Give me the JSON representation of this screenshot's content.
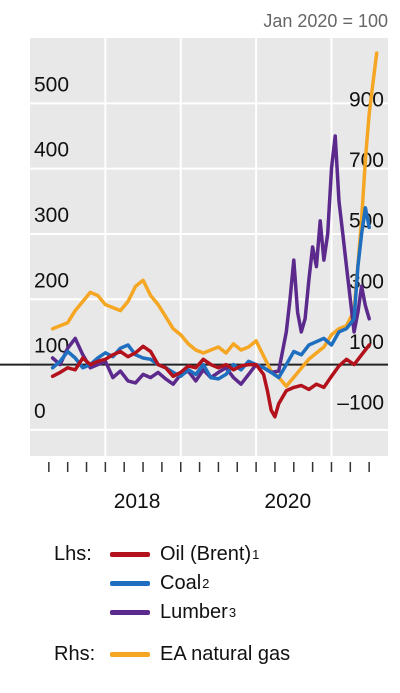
{
  "chart_data": {
    "type": "line",
    "note": "Jan 2020 = 100",
    "x_tick_labels": [
      "2018",
      "2020"
    ],
    "x_range": [
      2017.0,
      2021.75
    ],
    "left_axis": {
      "range": [
        -40,
        600
      ],
      "ticks": [
        0,
        100,
        200,
        300,
        400,
        500
      ]
    },
    "right_axis": {
      "range": [
        -280,
        1100
      ],
      "ticks": [
        -100,
        100,
        300,
        500,
        700,
        900
      ]
    },
    "reference_line": 100,
    "grid": true,
    "legend_placement": "bottom",
    "series": [
      {
        "name": "Oil (Brent)",
        "footnote": "1",
        "axis": "left",
        "axis_label": "Lhs:",
        "color": "#b3121c",
        "x": [
          2017.3,
          2017.4,
          2017.5,
          2017.6,
          2017.7,
          2017.8,
          2017.9,
          2018.0,
          2018.1,
          2018.2,
          2018.3,
          2018.4,
          2018.5,
          2018.6,
          2018.7,
          2018.8,
          2018.9,
          2019.0,
          2019.1,
          2019.2,
          2019.3,
          2019.4,
          2019.5,
          2019.6,
          2019.7,
          2019.8,
          2019.9,
          2020.0,
          2020.1,
          2020.15,
          2020.2,
          2020.25,
          2020.3,
          2020.35,
          2020.4,
          2020.5,
          2020.6,
          2020.7,
          2020.8,
          2020.9,
          2021.0,
          2021.1,
          2021.2,
          2021.3,
          2021.4,
          2021.5
        ],
        "values": [
          82,
          88,
          95,
          92,
          110,
          100,
          105,
          108,
          115,
          120,
          112,
          118,
          128,
          120,
          100,
          95,
          82,
          88,
          98,
          95,
          108,
          100,
          95,
          100,
          92,
          98,
          100,
          100,
          85,
          60,
          30,
          20,
          40,
          50,
          60,
          65,
          68,
          62,
          70,
          65,
          82,
          98,
          108,
          100,
          115,
          130
        ]
      },
      {
        "name": "Coal",
        "footnote": "2",
        "axis": "left",
        "axis_label": "",
        "color": "#1f6fc0",
        "x": [
          2017.3,
          2017.4,
          2017.5,
          2017.6,
          2017.7,
          2017.8,
          2017.9,
          2018.0,
          2018.1,
          2018.2,
          2018.3,
          2018.4,
          2018.5,
          2018.6,
          2018.7,
          2018.8,
          2018.9,
          2019.0,
          2019.1,
          2019.2,
          2019.3,
          2019.4,
          2019.5,
          2019.6,
          2019.7,
          2019.8,
          2019.9,
          2020.0,
          2020.1,
          2020.2,
          2020.3,
          2020.4,
          2020.5,
          2020.6,
          2020.7,
          2020.8,
          2020.9,
          2021.0,
          2021.1,
          2021.2,
          2021.3,
          2021.35,
          2021.4,
          2021.45,
          2021.5
        ],
        "values": [
          95,
          105,
          120,
          110,
          95,
          100,
          110,
          118,
          112,
          125,
          130,
          115,
          110,
          108,
          100,
          95,
          88,
          82,
          92,
          85,
          100,
          80,
          78,
          85,
          100,
          92,
          105,
          100,
          95,
          88,
          80,
          100,
          120,
          115,
          130,
          135,
          140,
          130,
          150,
          155,
          170,
          250,
          300,
          340,
          310
        ]
      },
      {
        "name": "Lumber",
        "footnote": "3",
        "axis": "left",
        "axis_label": "",
        "color": "#5b2a8c",
        "x": [
          2017.3,
          2017.4,
          2017.5,
          2017.6,
          2017.7,
          2017.8,
          2017.9,
          2018.0,
          2018.1,
          2018.2,
          2018.3,
          2018.4,
          2018.5,
          2018.6,
          2018.7,
          2018.8,
          2018.9,
          2019.0,
          2019.1,
          2019.2,
          2019.3,
          2019.4,
          2019.5,
          2019.6,
          2019.7,
          2019.8,
          2019.9,
          2020.0,
          2020.1,
          2020.2,
          2020.3,
          2020.35,
          2020.4,
          2020.45,
          2020.5,
          2020.55,
          2020.6,
          2020.65,
          2020.7,
          2020.75,
          2020.8,
          2020.85,
          2020.9,
          2020.95,
          2021.0,
          2021.05,
          2021.1,
          2021.15,
          2021.2,
          2021.25,
          2021.3,
          2021.35,
          2021.4,
          2021.45,
          2021.5
        ],
        "values": [
          110,
          100,
          125,
          140,
          115,
          95,
          100,
          105,
          80,
          90,
          75,
          72,
          85,
          80,
          88,
          78,
          70,
          85,
          90,
          75,
          92,
          80,
          88,
          95,
          80,
          70,
          85,
          100,
          95,
          88,
          90,
          120,
          150,
          200,
          260,
          180,
          150,
          170,
          230,
          280,
          250,
          320,
          260,
          300,
          400,
          450,
          350,
          300,
          250,
          200,
          150,
          180,
          220,
          190,
          170
        ]
      },
      {
        "name": "EA natural gas",
        "footnote": "",
        "axis": "right",
        "axis_label": "Rhs:",
        "color": "#f5a623",
        "x": [
          2017.3,
          2017.4,
          2017.5,
          2017.6,
          2017.7,
          2017.8,
          2017.9,
          2018.0,
          2018.1,
          2018.2,
          2018.3,
          2018.4,
          2018.5,
          2018.6,
          2018.7,
          2018.8,
          2018.9,
          2019.0,
          2019.1,
          2019.2,
          2019.3,
          2019.4,
          2019.5,
          2019.6,
          2019.7,
          2019.8,
          2019.9,
          2020.0,
          2020.1,
          2020.2,
          2020.3,
          2020.4,
          2020.5,
          2020.6,
          2020.7,
          2020.8,
          2020.9,
          2021.0,
          2021.1,
          2021.2,
          2021.3,
          2021.35,
          2021.4,
          2021.45,
          2021.5,
          2021.55,
          2021.6
        ],
        "values": [
          140,
          150,
          160,
          200,
          230,
          260,
          250,
          220,
          210,
          200,
          230,
          280,
          300,
          250,
          220,
          180,
          140,
          120,
          90,
          70,
          60,
          70,
          80,
          60,
          90,
          70,
          80,
          100,
          50,
          0,
          -20,
          -50,
          -20,
          10,
          40,
          60,
          80,
          120,
          140,
          150,
          200,
          350,
          500,
          700,
          850,
          950,
          1050
        ]
      }
    ]
  }
}
